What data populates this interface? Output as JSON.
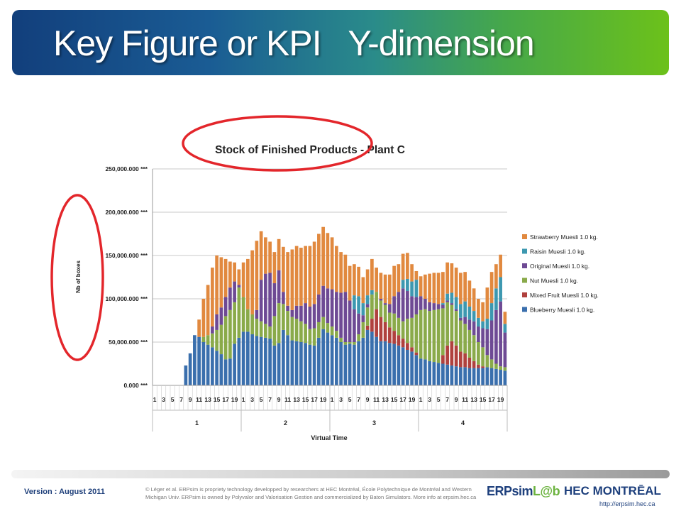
{
  "header": {
    "title": "Key Figure or KPI   Y-dimension"
  },
  "footer": {
    "version": "Version : August 2011",
    "legal": "© Léger et al. ERPsim is propriety technology developped by researchers at HEC Montréal, École Polytechnique de Montréal and Western Michigan Univ. ERPsim is owned by Polyvalor and Valorisation Gestion and commercialized by Baton Simulators. More info at erpsim.hec.ca",
    "erpsim_logo": "ERPsim",
    "erpsim_lab": "L@b",
    "hec_logo": "HEC MONTRĒAL",
    "hec_url": "http://erpsim.hec.ca"
  },
  "colors": {
    "Blueberry": "#3a6fad",
    "MixedFruit": "#b0413e",
    "Nut": "#8aaa4a",
    "Original": "#6e4a94",
    "Raisin": "#3d98b0",
    "Strawberry": "#e1893f"
  },
  "chart_data": {
    "type": "bar",
    "stacked": true,
    "title": "Stock of Finished Products - Plant C",
    "ylabel": "Nb of boxes",
    "xlabel": "Virtual Time",
    "ylim": [
      0,
      250000
    ],
    "yticks": [
      "0.000 ***",
      "50,000.000 ***",
      "100,000.000 ***",
      "150,000.000 ***",
      "200,000.000 ***",
      "250,000.000 ***"
    ],
    "groups": [
      "1",
      "2",
      "3",
      "4"
    ],
    "periods": [
      1,
      2,
      3,
      4,
      5,
      6,
      7,
      8,
      9,
      10,
      11,
      12,
      13,
      14,
      15,
      16,
      17,
      18,
      19,
      20
    ],
    "period_labels": [
      "1",
      "3",
      "5",
      "7",
      "9",
      "11",
      "13",
      "15",
      "17",
      "19"
    ],
    "grid": true,
    "legend_position": "right",
    "series": [
      {
        "name": "Blueberry Muesli 1.0 kg.",
        "color_key": "Blueberry",
        "values": [
          0,
          0,
          0,
          0,
          0,
          0,
          0,
          23000,
          37000,
          58000,
          56000,
          50000,
          47000,
          44000,
          40000,
          36000,
          30000,
          31000,
          48000,
          55000,
          62000,
          62000,
          59000,
          57000,
          56000,
          55000,
          54000,
          46000,
          49000,
          64000,
          58000,
          52000,
          51000,
          50000,
          49000,
          47000,
          46000,
          55000,
          65000,
          61000,
          58000,
          55000,
          50000,
          47000,
          48000,
          47000,
          51000,
          55000,
          64000,
          62000,
          56000,
          51000,
          51000,
          49000,
          48000,
          46000,
          44000,
          41000,
          39000,
          35000,
          31000,
          30000,
          28000,
          27000,
          26000,
          25000,
          24000,
          23000,
          22000,
          21000,
          21000,
          20000,
          20000,
          20000,
          20000,
          21000,
          20000,
          19000,
          18000,
          17000
        ]
      },
      {
        "name": "Mixed Fruit Muesli 1.0 kg.",
        "color_key": "MixedFruit",
        "values": [
          0,
          0,
          0,
          0,
          0,
          0,
          0,
          0,
          0,
          0,
          0,
          0,
          0,
          0,
          0,
          0,
          0,
          0,
          0,
          0,
          0,
          0,
          0,
          0,
          0,
          0,
          0,
          0,
          0,
          0,
          0,
          0,
          0,
          0,
          0,
          0,
          0,
          0,
          0,
          0,
          0,
          0,
          0,
          0,
          0,
          0,
          0,
          0,
          5000,
          15000,
          32000,
          28000,
          22000,
          18000,
          15000,
          12000,
          10000,
          8000,
          5000,
          3000,
          0,
          0,
          0,
          0,
          0,
          10000,
          22000,
          28000,
          24000,
          18000,
          16000,
          12000,
          8000,
          4000,
          2000,
          0,
          0,
          0,
          0,
          0
        ]
      },
      {
        "name": "Nut Muesli 1.0 kg.",
        "color_key": "Nut",
        "values": [
          0,
          0,
          0,
          0,
          0,
          0,
          0,
          0,
          0,
          0,
          0,
          6000,
          11000,
          16000,
          24000,
          34000,
          50000,
          56000,
          48000,
          58000,
          40000,
          26000,
          23000,
          20000,
          18000,
          16000,
          14000,
          34000,
          46000,
          30000,
          28000,
          27000,
          26000,
          24000,
          22000,
          18000,
          20000,
          18000,
          14000,
          11000,
          10000,
          8000,
          5000,
          3000,
          2000,
          3000,
          8000,
          18000,
          21000,
          28000,
          20000,
          19000,
          20000,
          17000,
          20000,
          20000,
          20000,
          28000,
          34000,
          44000,
          56000,
          58000,
          58000,
          60000,
          62000,
          54000,
          50000,
          42000,
          40000,
          36000,
          34000,
          32000,
          30000,
          26000,
          22000,
          14000,
          10000,
          6000,
          4000,
          4000
        ]
      },
      {
        "name": "Original Muesli 1.0 kg.",
        "color_key": "Original",
        "values": [
          0,
          0,
          0,
          0,
          0,
          0,
          0,
          0,
          0,
          0,
          0,
          0,
          0,
          8000,
          18000,
          20000,
          22000,
          26000,
          24000,
          3000,
          0,
          0,
          0,
          10000,
          48000,
          58000,
          62000,
          38000,
          38000,
          14000,
          6000,
          8000,
          15000,
          18000,
          24000,
          26000,
          28000,
          32000,
          36000,
          40000,
          43000,
          45000,
          52000,
          58000,
          48000,
          38000,
          24000,
          8000,
          4000,
          0,
          0,
          2000,
          2000,
          10000,
          20000,
          30000,
          38000,
          32000,
          25000,
          20000,
          16000,
          12000,
          10000,
          8000,
          6000,
          4000,
          2000,
          2000,
          2000,
          3000,
          8000,
          12000,
          16000,
          18000,
          22000,
          30000,
          45000,
          62000,
          75000,
          40000
        ]
      },
      {
        "name": "Raisin Muesli 1.0 kg.",
        "color_key": "Raisin",
        "values": [
          0,
          0,
          0,
          0,
          0,
          0,
          0,
          0,
          0,
          0,
          0,
          0,
          0,
          0,
          0,
          0,
          0,
          0,
          0,
          0,
          0,
          0,
          0,
          0,
          0,
          0,
          0,
          0,
          0,
          0,
          0,
          0,
          0,
          0,
          0,
          0,
          0,
          0,
          0,
          0,
          0,
          0,
          0,
          0,
          0,
          16000,
          20000,
          14000,
          10000,
          5000,
          0,
          0,
          0,
          0,
          0,
          0,
          10000,
          14000,
          17000,
          20000,
          0,
          0,
          0,
          0,
          0,
          2000,
          8000,
          12000,
          14000,
          16000,
          18000,
          15000,
          12000,
          10000,
          8000,
          12000,
          20000,
          25000,
          28000,
          10000
        ]
      },
      {
        "name": "Strawberry Muesli 1.0 kg.",
        "color_key": "Strawberry",
        "values": [
          0,
          0,
          0,
          0,
          0,
          0,
          0,
          0,
          0,
          0,
          20000,
          44000,
          58000,
          68000,
          68000,
          58000,
          44000,
          30000,
          22000,
          18000,
          40000,
          58000,
          74000,
          80000,
          56000,
          42000,
          36000,
          36000,
          36000,
          52000,
          62000,
          70000,
          69000,
          67000,
          66000,
          70000,
          72000,
          70000,
          68000,
          64000,
          60000,
          53000,
          47000,
          43000,
          40000,
          36000,
          34000,
          30000,
          30000,
          36000,
          28000,
          30000,
          33000,
          34000,
          35000,
          32000,
          30000,
          30000,
          20000,
          10000,
          23000,
          28000,
          33000,
          35000,
          36000,
          36000,
          36000,
          34000,
          34000,
          36000,
          34000,
          30000,
          26000,
          22000,
          22000,
          36000,
          36000,
          28000,
          26000,
          14000
        ]
      }
    ]
  }
}
